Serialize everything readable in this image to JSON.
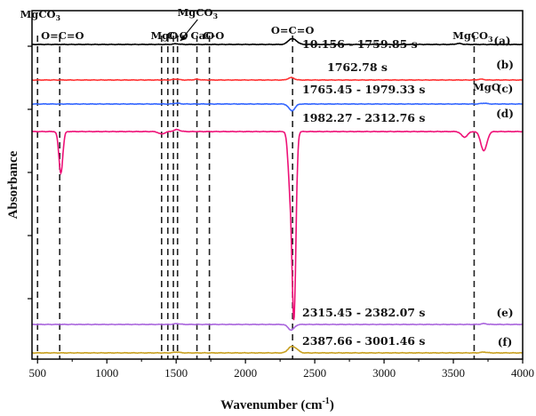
{
  "chart_data": {
    "type": "line",
    "xlabel_main": "Wavenumber (cm",
    "xlabel_sup": "-1",
    "xlabel_close": ")",
    "ylabel": "Absorbance",
    "xlim": [
      460,
      4000
    ],
    "xticks": [
      500,
      1000,
      1500,
      2000,
      2500,
      3000,
      3500,
      4000
    ],
    "y_ticks_labeled": false,
    "grid": false,
    "series": [
      {
        "name": "10.156 - 1759.85 s",
        "tag": "(a)",
        "color": "#000000",
        "baseline": 0,
        "features": [
          [
            1500,
            0.04
          ],
          [
            2325,
            0.28
          ],
          [
            2360,
            0.2
          ],
          [
            3540,
            0.06
          ]
        ]
      },
      {
        "name": "1762.78 s",
        "tag": "(b)",
        "color": "#ff3333",
        "baseline": 0,
        "features": [
          [
            1500,
            0.05
          ],
          [
            1650,
            0.04
          ],
          [
            2330,
            0.15
          ],
          [
            3700,
            0.05
          ]
        ]
      },
      {
        "name": "1765.45 - 1979.33 s",
        "tag": "(c)",
        "color": "#3366ff",
        "baseline": 0,
        "features": [
          [
            1505,
            0.05
          ],
          [
            2335,
            -0.42
          ],
          [
            3720,
            0.05
          ]
        ]
      },
      {
        "name": "1982.27 - 2312.76 s",
        "tag": "(d)",
        "color": "#ee1177",
        "baseline": 0,
        "features": [
          [
            668,
            -2.6
          ],
          [
            1395,
            -0.15
          ],
          [
            1505,
            0.12
          ],
          [
            2320,
            -3.0
          ],
          [
            2350,
            -11.5
          ],
          [
            3580,
            -0.35
          ],
          [
            3720,
            -1.2
          ]
        ]
      },
      {
        "name": "2315.45 - 2382.07 s",
        "tag": "(e)",
        "color": "#aa66dd",
        "baseline": 0,
        "features": [
          [
            1505,
            0.05
          ],
          [
            2330,
            -0.35
          ],
          [
            3720,
            0.05
          ]
        ]
      },
      {
        "name": "2387.66 - 3001.46 s",
        "tag": "(f)",
        "color": "#c8a020",
        "baseline": 0,
        "features": [
          [
            1505,
            0.05
          ],
          [
            2325,
            0.32
          ],
          [
            2362,
            0.24
          ],
          [
            3720,
            0.05
          ]
        ]
      }
    ],
    "reference_lines": [
      500,
      660,
      1395,
      1440,
      1480,
      1510,
      1650,
      1740,
      2340,
      3650
    ],
    "annotations": [
      {
        "text": "MgCO",
        "sub": "3",
        "x": 520
      },
      {
        "text": "O=C=O",
        "x": 680
      },
      {
        "text": "MgO",
        "x": 1415
      },
      {
        "text": "C-O",
        "x": 1510
      },
      {
        "text": "MgCO",
        "sub": "3",
        "x": 1655
      },
      {
        "text": "CaO",
        "x": 1690
      },
      {
        "text": "C-O",
        "x": 1770
      },
      {
        "text": "O=C=O",
        "x": 2340
      },
      {
        "text": "MgCO",
        "sub": "3",
        "x": 3640
      },
      {
        "text": "MgO",
        "x": 3740
      }
    ]
  }
}
